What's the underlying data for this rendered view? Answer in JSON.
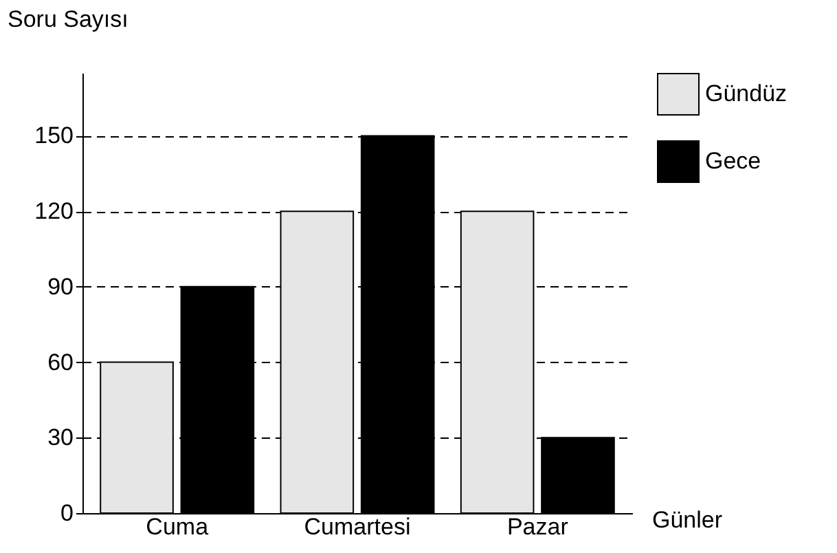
{
  "chart_data": {
    "type": "bar",
    "xlabel": "Günler",
    "ylabel": "Soru Sayısı",
    "categories": [
      "Cuma",
      "Cumartesi",
      "Pazar"
    ],
    "series": [
      {
        "name": "Gündüz",
        "color": "#e6e6e6",
        "values": [
          60,
          120,
          120
        ]
      },
      {
        "name": "Gece",
        "color": "#000000",
        "values": [
          90,
          150,
          30
        ]
      }
    ],
    "ylim": [
      0,
      175
    ],
    "yticks": [
      0,
      30,
      60,
      90,
      120,
      150
    ],
    "grid": "y",
    "legend": "top right"
  }
}
